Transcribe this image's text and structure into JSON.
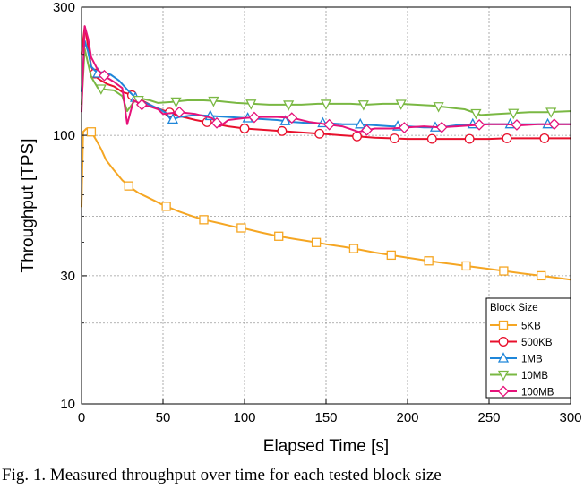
{
  "caption": "Fig. 1. Measured throughput over time for each tested block size",
  "chart_data": {
    "type": "line",
    "xlabel": "Elapsed Time [s]",
    "ylabel": "Throughput [TPS]",
    "xlim": [
      0,
      300
    ],
    "ylim": [
      10,
      300
    ],
    "yscale": "log",
    "x_ticks": [
      0,
      50,
      100,
      150,
      200,
      250,
      300
    ],
    "y_ticks": [
      10,
      30,
      100,
      300
    ],
    "grid": "dashed, both axes",
    "legend": {
      "title": "Block Size",
      "placement": "bottom-right"
    },
    "series": [
      {
        "name": "5KB",
        "color": "#f5a623",
        "marker": "square",
        "x": [
          0,
          1,
          3,
          6,
          9,
          12,
          15,
          20,
          25,
          30,
          35,
          40,
          45,
          50,
          55,
          60,
          68,
          75,
          85,
          95,
          100,
          110,
          120,
          130,
          140,
          150,
          160,
          170,
          180,
          190,
          200,
          210,
          220,
          230,
          240,
          250,
          260,
          270,
          280,
          290,
          300
        ],
        "y": [
          54,
          103,
          106,
          103,
          96,
          89,
          81,
          74,
          68,
          64,
          61,
          59,
          57,
          55,
          53.5,
          52,
          50,
          48.5,
          47,
          45.5,
          45,
          43.5,
          42.2,
          41.2,
          40.3,
          39.3,
          38.5,
          37.6,
          36.6,
          35.8,
          35,
          34.3,
          33.6,
          33,
          32.4,
          31.8,
          31.2,
          30.6,
          30.1,
          29.6,
          29
        ]
      },
      {
        "name": "500KB",
        "color": "#e8102c",
        "marker": "circle",
        "x": [
          0,
          2,
          4,
          6,
          9,
          12,
          16,
          20,
          25,
          30,
          35,
          40,
          45,
          50,
          60,
          70,
          80,
          90,
          100,
          110,
          120,
          130,
          140,
          150,
          160,
          170,
          180,
          190,
          200,
          210,
          220,
          230,
          240,
          250,
          260,
          270,
          280,
          290,
          300
        ],
        "y": [
          200,
          255,
          215,
          180,
          165,
          160,
          155,
          152,
          145,
          142,
          137,
          132,
          127,
          124,
          118,
          114,
          111,
          108,
          106,
          105,
          104,
          103,
          102,
          101,
          100,
          99,
          98,
          97.5,
          97,
          97,
          97,
          97,
          97,
          97,
          97.5,
          97.5,
          97.5,
          97.5,
          97.5
        ]
      },
      {
        "name": "1MB",
        "color": "#1f86d9",
        "marker": "triangle-up",
        "x": [
          0,
          2,
          4,
          6,
          10,
          13,
          18,
          23,
          28,
          33,
          38,
          43,
          48,
          52,
          55,
          60,
          70,
          80,
          90,
          100,
          110,
          120,
          130,
          140,
          150,
          160,
          170,
          180,
          190,
          200,
          210,
          220,
          230,
          240,
          250,
          260,
          270,
          280,
          290,
          300
        ],
        "y": [
          145,
          225,
          205,
          180,
          170,
          172,
          168,
          160,
          148,
          138,
          133,
          129,
          125,
          121,
          114,
          117,
          119,
          118,
          117,
          116,
          115,
          114,
          112,
          111,
          111,
          110,
          110,
          109,
          108,
          108,
          107,
          107,
          109,
          110,
          110,
          110,
          110,
          110,
          110,
          110
        ]
      },
      {
        "name": "10MB",
        "color": "#7ab843",
        "marker": "triangle-down",
        "x": [
          0,
          2,
          4,
          6,
          10,
          15,
          20,
          25,
          28,
          32,
          37,
          42,
          47,
          55,
          65,
          75,
          85,
          95,
          105,
          115,
          125,
          135,
          145,
          155,
          165,
          175,
          185,
          195,
          205,
          215,
          225,
          235,
          245,
          255,
          265,
          275,
          285,
          300
        ],
        "y": [
          130,
          210,
          185,
          165,
          150,
          148,
          147,
          140,
          123,
          133,
          137,
          135,
          132,
          133,
          135,
          135,
          134,
          132,
          131,
          130,
          130,
          130,
          131,
          131,
          131,
          130,
          131,
          131,
          130,
          129,
          127,
          125,
          119,
          120,
          121,
          122,
          122,
          123
        ]
      },
      {
        "name": "100MB",
        "color": "#e6127a",
        "marker": "diamond",
        "x": [
          0,
          2,
          4,
          6,
          10,
          15,
          20,
          25,
          28,
          32,
          37,
          42,
          47,
          50,
          60,
          70,
          80,
          85,
          90,
          100,
          110,
          120,
          130,
          140,
          150,
          160,
          170,
          180,
          190,
          200,
          210,
          220,
          230,
          240,
          250,
          260,
          270,
          280,
          290,
          300
        ],
        "y": [
          122,
          255,
          230,
          195,
          175,
          165,
          158,
          150,
          110,
          135,
          130,
          128,
          125,
          120,
          122,
          120,
          116,
          108,
          114,
          116,
          117,
          117,
          116,
          112,
          110,
          108,
          103,
          106,
          106,
          107,
          108,
          107,
          108,
          109,
          110,
          110,
          109,
          110,
          110,
          110
        ]
      }
    ]
  }
}
